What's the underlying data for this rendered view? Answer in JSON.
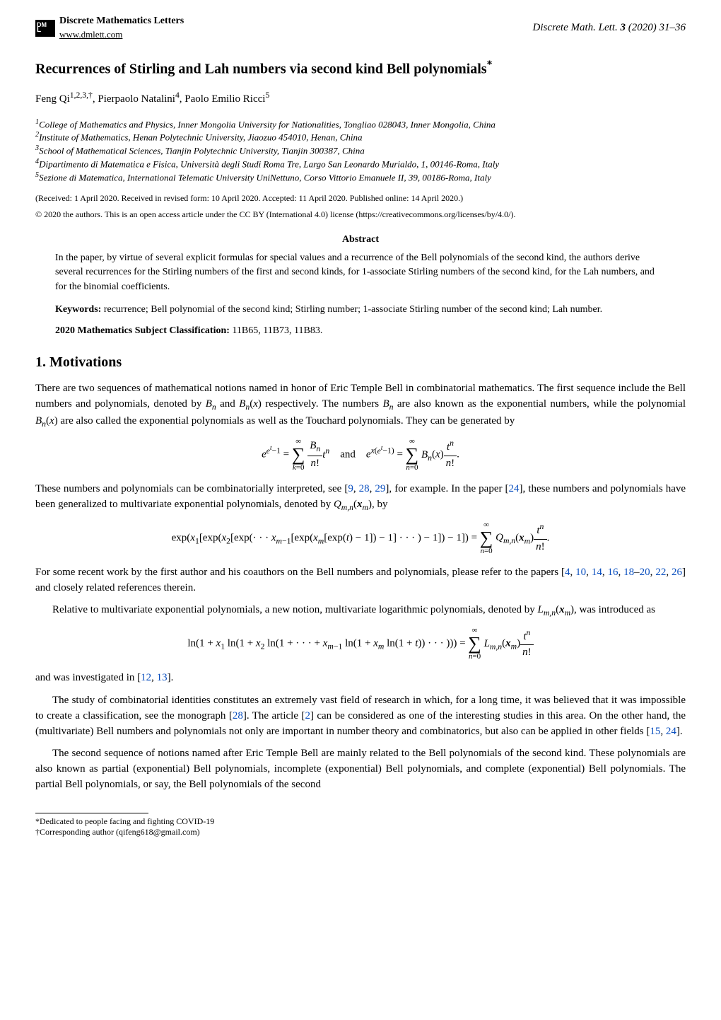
{
  "header": {
    "journal_name": "Discrete Mathematics Letters",
    "website": "www.dmlett.com",
    "issue": "Discrete Math. Lett.",
    "volume": "3",
    "year": "(2020)",
    "pages": "31–36"
  },
  "title": "Recurrences of Stirling and Lah numbers via second kind Bell polynomials",
  "title_marker": "*",
  "authors": "Feng Qi",
  "authors_sup": "1,2,3,†",
  "authors2": ", Pierpaolo Natalini",
  "authors2_sup": "4",
  "authors3": ", Paolo Emilio Ricci",
  "authors3_sup": "5",
  "affiliations": {
    "a1": "College of Mathematics and Physics, Inner Mongolia University for Nationalities, Tongliao 028043, Inner Mongolia, China",
    "a2": "Institute of Mathematics, Henan Polytechnic University, Jiaozuo 454010, Henan, China",
    "a3": "School of Mathematical Sciences, Tianjin Polytechnic University, Tianjin 300387, China",
    "a4": "Dipartimento di Matematica e Fisica, Università degli Studi Roma Tre, Largo San Leonardo Murialdo, 1, 00146-Roma, Italy",
    "a5": "Sezione di Matematica, International Telematic University UniNettuno, Corso Vittorio Emanuele II, 39, 00186-Roma, Italy"
  },
  "received": "(Received: 1 April 2020. Received in revised form: 10 April 2020. Accepted: 11 April 2020. Published online: 14 April 2020.)",
  "license": "© 2020 the authors. This is an open access article under the CC BY (International 4.0) license (https://creativecommons.org/licenses/by/4.0/).",
  "abstract_head": "Abstract",
  "abstract_body": "In the paper, by virtue of several explicit formulas for special values and a recurrence of the Bell polynomials of the second kind, the authors derive several recurrences for the Stirling numbers of the first and second kinds, for 1-associate Stirling numbers of the second kind, for the Lah numbers, and for the binomial coefficients.",
  "keywords_label": "Keywords:",
  "keywords_text": " recurrence; Bell polynomial of the second kind; Stirling number; 1-associate Stirling number of the second kind; Lah number.",
  "msc_label": "2020 Mathematics Subject Classification:",
  "msc_text": " 11B65, 11B73, 11B83.",
  "section1_title": "1.   Motivations",
  "para1": "There are two sequences of mathematical notions named in honor of Eric Temple Bell in combinatorial mathematics. The first sequence include the Bell numbers and polynomials, denoted by Bₙ and Bₙ(x) respectively. The numbers Bₙ are also known as the exponential numbers, while the polynomial Bₙ(x) are also called the exponential polynomials as well as the Touchard polynomials. They can be generated by",
  "para2a": "These numbers and polynomials can be combinatorially interpreted, see [",
  "para2b": "], for example. In the paper [",
  "para2c": "], these numbers and polynomials have been generalized to multivariate exponential polynomials, denoted by Q",
  "para2d": "(xₘ), by",
  "cites": {
    "c1": "9",
    "c2": "28",
    "c3": "29",
    "c4": "24",
    "c5": "4",
    "c6": "10",
    "c7": "14",
    "c8": "16",
    "c9": "18",
    "c10": "20",
    "c11": "22",
    "c12": "26",
    "c13": "12",
    "c14": "13",
    "c15": "28",
    "c16": "2",
    "c17": "15",
    "c18": "24"
  },
  "para3a": "For some recent work by the first author and his coauthors on the Bell numbers and polynomials, please refer to the papers [",
  "para3b": "] and closely related references therein.",
  "para4": "Relative to multivariate exponential polynomials, a new notion, multivariate logarithmic polynomials, denoted by L",
  "para4b": "(xₘ), was introduced as",
  "para5a": "and was investigated in [",
  "para5b": "].",
  "para6a": "The study of combinatorial identities constitutes an extremely vast field of research in which, for a long time, it was believed that it was impossible to create a classification, see the monograph [",
  "para6b": "]. The article [",
  "para6c": "] can be considered as one of the interesting studies in this area. On the other hand, the (multivariate) Bell numbers and polynomials not only are important in number theory and combinatorics, but also can be applied in other fields [",
  "para6d": "].",
  "para7": "The second sequence of notions named after Eric Temple Bell are mainly related to the Bell polynomials of the second kind. These polynomials are also known as partial (exponential) Bell polynomials, incomplete (exponential) Bell polynomials, and complete (exponential) Bell polynomials. The partial Bell polynomials, or say, the Bell polynomials of the second",
  "footnote1": "*Dedicated to people facing and fighting COVID-19",
  "footnote2": "†Corresponding author (qifeng618@gmail.com)",
  "math": {
    "eq1_left": "e",
    "eq1_exp": "eᵗ−1",
    "eq1_eq": " = ",
    "eq1_and": "   and   ",
    "eq1_right_exp": "x(eᵗ−1)",
    "eq2": "exp(x₁[exp(x₂[exp(· · · xₘ₋₁[exp(xₘ[exp(t) − 1]) − 1] · · · ) − 1]) − 1]) = ",
    "eq3": "ln(1 + x₁ ln(1 + x₂ ln(1 + · · · + xₘ₋₁ ln(1 + xₘ ln(1 + t)) · · · ))) = "
  }
}
